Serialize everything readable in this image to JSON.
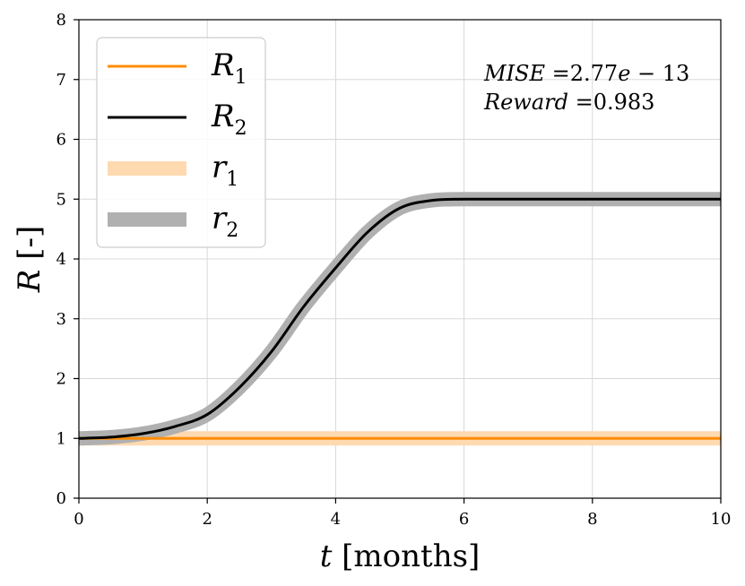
{
  "chart_data": {
    "type": "line",
    "title": "",
    "xlabel": {
      "var": "t",
      "unit": " [months]"
    },
    "ylabel": {
      "var": "R",
      "unit": " [-]"
    },
    "xlim": [
      0,
      10
    ],
    "ylim": [
      0,
      8
    ],
    "xticks": [
      0,
      2,
      4,
      6,
      8,
      10
    ],
    "yticks": [
      0,
      1,
      2,
      3,
      4,
      5,
      6,
      7,
      8
    ],
    "xtick_labels": [
      "0",
      "2",
      "4",
      "6",
      "8",
      "10"
    ],
    "ytick_labels": [
      "0",
      "1",
      "2",
      "3",
      "4",
      "5",
      "6",
      "7",
      "8"
    ],
    "grid": true,
    "legend_position": "top-left",
    "x": [
      0.0,
      0.5,
      1.0,
      1.5,
      2.0,
      2.5,
      3.0,
      3.5,
      4.0,
      4.5,
      5.0,
      5.5,
      6.0,
      7.0,
      8.0,
      9.0,
      10.0
    ],
    "series": [
      {
        "name": "r_1",
        "label_base": "r",
        "label_sub": "1",
        "role": "reference",
        "color": "#ffd9b0",
        "values": [
          1,
          1,
          1,
          1,
          1,
          1,
          1,
          1,
          1,
          1,
          1,
          1,
          1,
          1,
          1,
          1,
          1
        ]
      },
      {
        "name": "r_2",
        "label_base": "r",
        "label_sub": "2",
        "role": "reference",
        "color": "#b0b0b0",
        "values": [
          1.0,
          1.02,
          1.08,
          1.2,
          1.4,
          1.85,
          2.45,
          3.2,
          3.85,
          4.45,
          4.85,
          4.98,
          5.0,
          5.0,
          5.0,
          5.0,
          5.0
        ]
      },
      {
        "name": "R_1",
        "label_base": "R",
        "label_sub": "1",
        "role": "output",
        "color": "#ff8c00",
        "values": [
          1,
          1,
          1,
          1,
          1,
          1,
          1,
          1,
          1,
          1,
          1,
          1,
          1,
          1,
          1,
          1,
          1
        ]
      },
      {
        "name": "R_2",
        "label_base": "R",
        "label_sub": "2",
        "role": "output",
        "color": "#000000",
        "values": [
          1.0,
          1.02,
          1.08,
          1.2,
          1.4,
          1.85,
          2.45,
          3.2,
          3.85,
          4.45,
          4.85,
          4.98,
          5.0,
          5.0,
          5.0,
          5.0,
          5.0
        ]
      }
    ],
    "legend_order": [
      "R_1",
      "R_2",
      "r_1",
      "r_2"
    ],
    "annotations": [
      {
        "name": "mise",
        "var": "MISE",
        "eq": " =",
        "value": "2.77",
        "exp_var": "e",
        "exp_rest": " − 13"
      },
      {
        "name": "reward",
        "var": "Reward",
        "eq": " =",
        "value": "0.983"
      }
    ]
  }
}
